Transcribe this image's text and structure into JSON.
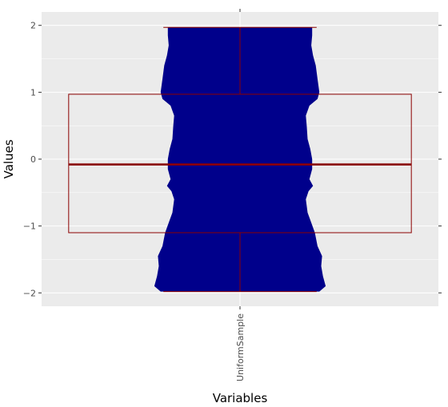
{
  "chart_data": {
    "type": "violin",
    "xlabel": "Variables",
    "ylabel": "Values",
    "categories": [
      "UniformSample"
    ],
    "ylim": [
      -2.2,
      2.2
    ],
    "yticks": [
      -2,
      -1,
      0,
      1,
      2
    ],
    "ytick_labels": [
      "−2",
      "−1",
      "0",
      "1",
      "2"
    ],
    "grid": true,
    "colors": {
      "panel_background": "#ebebeb",
      "gridline": "#ffffff",
      "violin_fill": "#00008b",
      "box_outline": "#8b0000"
    },
    "violin": {
      "category": "UniformSample",
      "y_min": -1.98,
      "y_max": 1.97,
      "density_profile": [
        {
          "y": -1.98,
          "width": 0.88
        },
        {
          "y": -1.9,
          "width": 0.95
        },
        {
          "y": -1.75,
          "width": 0.92
        },
        {
          "y": -1.6,
          "width": 0.9
        },
        {
          "y": -1.45,
          "width": 0.91
        },
        {
          "y": -1.3,
          "width": 0.86
        },
        {
          "y": -1.1,
          "width": 0.83
        },
        {
          "y": -0.95,
          "width": 0.79
        },
        {
          "y": -0.8,
          "width": 0.75
        },
        {
          "y": -0.6,
          "width": 0.73
        },
        {
          "y": -0.48,
          "width": 0.76
        },
        {
          "y": -0.4,
          "width": 0.81
        },
        {
          "y": -0.3,
          "width": 0.77
        },
        {
          "y": -0.15,
          "width": 0.8
        },
        {
          "y": 0.0,
          "width": 0.8
        },
        {
          "y": 0.15,
          "width": 0.78
        },
        {
          "y": 0.3,
          "width": 0.75
        },
        {
          "y": 0.5,
          "width": 0.74
        },
        {
          "y": 0.65,
          "width": 0.73
        },
        {
          "y": 0.8,
          "width": 0.77
        },
        {
          "y": 0.9,
          "width": 0.86
        },
        {
          "y": 1.0,
          "width": 0.88
        },
        {
          "y": 1.2,
          "width": 0.86
        },
        {
          "y": 1.4,
          "width": 0.84
        },
        {
          "y": 1.55,
          "width": 0.81
        },
        {
          "y": 1.7,
          "width": 0.79
        },
        {
          "y": 1.85,
          "width": 0.8
        },
        {
          "y": 1.97,
          "width": 0.8
        }
      ]
    },
    "boxplot": {
      "category": "UniformSample",
      "q1": -1.1,
      "median": -0.08,
      "q3": 0.97,
      "whisker_low": -1.98,
      "whisker_high": 1.97,
      "box_width_fraction": 1.9,
      "whisker_cap_width_fraction": 0.85
    }
  }
}
